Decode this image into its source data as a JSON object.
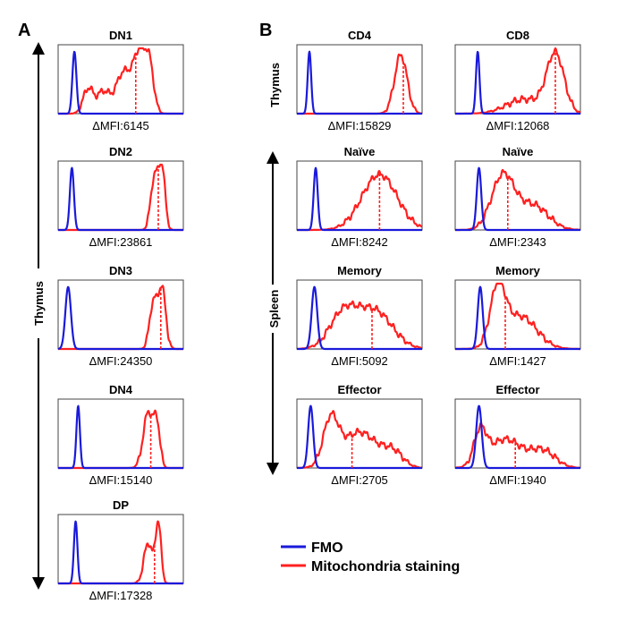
{
  "panel_labels": {
    "a": "A",
    "b": "B"
  },
  "side_labels": {
    "thymus_a": "Thymus",
    "thymus_b": "Thymus",
    "spleen": "Spleen"
  },
  "legend": [
    {
      "label": "FMO",
      "color": "#1a1adb"
    },
    {
      "label": "Mitochondria staining",
      "color": "#ff2020"
    }
  ],
  "colors": {
    "fmo": "#1a1adb",
    "stain": "#ff2020"
  },
  "chart_data": [
    {
      "type": "histogram",
      "panel": "A",
      "tissue": "Thymus",
      "title": "DN1",
      "dmfi": "ΔMFI:6145",
      "median_position": 0.62,
      "fmo": {
        "peak": 0.13,
        "width": 0.016
      },
      "stain": [
        {
          "c": 0.24,
          "w": 0.04,
          "h": 0.38
        },
        {
          "c": 0.36,
          "w": 0.05,
          "h": 0.33
        },
        {
          "c": 0.52,
          "w": 0.06,
          "h": 0.62
        },
        {
          "c": 0.65,
          "w": 0.05,
          "h": 0.9
        },
        {
          "c": 0.73,
          "w": 0.035,
          "h": 0.65
        }
      ]
    },
    {
      "type": "histogram",
      "panel": "A",
      "tissue": "Thymus",
      "title": "DN2",
      "dmfi": "ΔMFI:23861",
      "median_position": 0.8,
      "fmo": {
        "peak": 0.11,
        "width": 0.016
      },
      "stain": [
        {
          "c": 0.77,
          "w": 0.03,
          "h": 0.82
        },
        {
          "c": 0.83,
          "w": 0.025,
          "h": 0.92
        }
      ]
    },
    {
      "type": "histogram",
      "panel": "A",
      "tissue": "Thymus",
      "title": "DN3",
      "dmfi": "ΔMFI:24350",
      "median_position": 0.82,
      "fmo": {
        "peak": 0.08,
        "width": 0.022
      },
      "stain": [
        {
          "c": 0.76,
          "w": 0.03,
          "h": 0.7
        },
        {
          "c": 0.83,
          "w": 0.03,
          "h": 0.92
        }
      ]
    },
    {
      "type": "histogram",
      "panel": "A",
      "tissue": "Thymus",
      "title": "DN4",
      "dmfi": "ΔMFI:15140",
      "median_position": 0.74,
      "fmo": {
        "peak": 0.16,
        "width": 0.014
      },
      "stain": [
        {
          "c": 0.72,
          "w": 0.04,
          "h": 0.85
        },
        {
          "c": 0.79,
          "w": 0.025,
          "h": 0.6
        }
      ]
    },
    {
      "type": "histogram",
      "panel": "A",
      "tissue": "Thymus",
      "title": "DP",
      "dmfi": "ΔMFI:17328",
      "median_position": 0.77,
      "fmo": {
        "peak": 0.14,
        "width": 0.014
      },
      "stain": [
        {
          "c": 0.72,
          "w": 0.035,
          "h": 0.62
        },
        {
          "c": 0.8,
          "w": 0.022,
          "h": 0.92
        }
      ]
    },
    {
      "type": "histogram",
      "panel": "B",
      "tissue": "Thymus",
      "title": "CD4",
      "dmfi": "ΔMFI:15829",
      "median_position": 0.85,
      "fmo": {
        "peak": 0.1,
        "width": 0.014
      },
      "stain": [
        {
          "c": 0.83,
          "w": 0.05,
          "h": 0.9
        }
      ]
    },
    {
      "type": "histogram",
      "panel": "B",
      "tissue": "Thymus",
      "title": "CD8",
      "dmfi": "ΔMFI:12068",
      "median_position": 0.8,
      "fmo": {
        "peak": 0.18,
        "width": 0.014
      },
      "stain": [
        {
          "c": 0.55,
          "w": 0.14,
          "h": 0.22
        },
        {
          "c": 0.8,
          "w": 0.07,
          "h": 0.9
        }
      ]
    },
    {
      "type": "histogram",
      "panel": "B",
      "tissue": "Spleen",
      "title": "Naïve",
      "dmfi": "ΔMFI:8242",
      "median_position": 0.66,
      "fmo": {
        "peak": 0.15,
        "width": 0.016
      },
      "stain": [
        {
          "c": 0.66,
          "w": 0.14,
          "h": 0.85
        }
      ]
    },
    {
      "type": "histogram",
      "panel": "B",
      "tissue": "Spleen",
      "title": "Naïve",
      "dmfi": "ΔMFI:2343",
      "median_position": 0.42,
      "fmo": {
        "peak": 0.19,
        "width": 0.018
      },
      "stain": [
        {
          "c": 0.38,
          "w": 0.09,
          "h": 0.82
        },
        {
          "c": 0.62,
          "w": 0.12,
          "h": 0.38
        }
      ]
    },
    {
      "type": "histogram",
      "panel": "B",
      "tissue": "Spleen",
      "title": "Memory",
      "dmfi": "ΔMFI:5092",
      "median_position": 0.6,
      "fmo": {
        "peak": 0.14,
        "width": 0.022
      },
      "stain": [
        {
          "c": 0.37,
          "w": 0.11,
          "h": 0.52
        },
        {
          "c": 0.62,
          "w": 0.14,
          "h": 0.58
        }
      ]
    },
    {
      "type": "histogram",
      "panel": "B",
      "tissue": "Spleen",
      "title": "Memory",
      "dmfi": "ΔMFI:1427",
      "median_position": 0.4,
      "fmo": {
        "peak": 0.2,
        "width": 0.02
      },
      "stain": [
        {
          "c": 0.34,
          "w": 0.06,
          "h": 0.85
        },
        {
          "c": 0.52,
          "w": 0.13,
          "h": 0.5
        }
      ]
    },
    {
      "type": "histogram",
      "panel": "B",
      "tissue": "Spleen",
      "title": "Effector",
      "dmfi": "ΔMFI:2705",
      "median_position": 0.44,
      "fmo": {
        "peak": 0.11,
        "width": 0.02
      },
      "stain": [
        {
          "c": 0.27,
          "w": 0.06,
          "h": 0.68
        },
        {
          "c": 0.5,
          "w": 0.14,
          "h": 0.55
        },
        {
          "c": 0.77,
          "w": 0.08,
          "h": 0.22
        }
      ]
    },
    {
      "type": "histogram",
      "panel": "B",
      "tissue": "Spleen",
      "title": "Effector",
      "dmfi": "ΔMFI:1940",
      "median_position": 0.48,
      "fmo": {
        "peak": 0.19,
        "width": 0.022
      },
      "stain": [
        {
          "c": 0.2,
          "w": 0.05,
          "h": 0.5
        },
        {
          "c": 0.4,
          "w": 0.13,
          "h": 0.44
        },
        {
          "c": 0.7,
          "w": 0.1,
          "h": 0.26
        }
      ]
    }
  ]
}
